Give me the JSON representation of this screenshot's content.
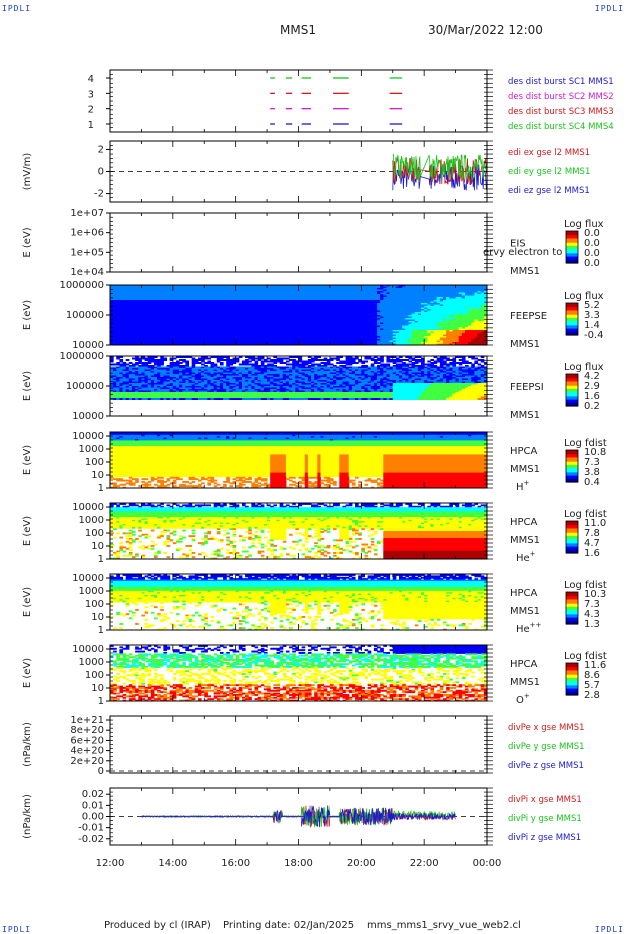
{
  "header": {
    "corner_tl": "IPDLI",
    "corner_tr": "IPDLI",
    "corner_bl": "IPDLI",
    "corner_br": "IPDLI",
    "mission": "MMS1",
    "date_time": "30/Mar/2022 12:00"
  },
  "footer": {
    "producer": "Produced by cl (IRAP)",
    "printing_date": "Printing date: 02/Jan/2025",
    "filename": "mms_mms1_srvy_vue_web2.cl"
  },
  "colors": {
    "red": "#d21a1a",
    "green": "#19c419",
    "blue": "#1a1ad2",
    "magenta": "#d21ad2",
    "cmap": [
      "#000088",
      "#0000ff",
      "#0080ff",
      "#00ffff",
      "#40ff40",
      "#ffff00",
      "#ff8000",
      "#ff0000",
      "#aa0000"
    ]
  },
  "chart_data": [
    {
      "type": "line",
      "panel": "burst",
      "yticks": [
        "4",
        "3",
        "2",
        "1"
      ],
      "legend": [
        {
          "text": "des dist burst SC1 MMS1",
          "color": "blue"
        },
        {
          "text": "des dist burst SC2 MMS2",
          "color": "magenta"
        },
        {
          "text": "des dist burst SC3 MMS3",
          "color": "red"
        },
        {
          "text": "des dist burst SC4 MMS4",
          "color": "green"
        }
      ],
      "segments": [
        [
          17.1,
          17.25
        ],
        [
          17.6,
          17.8
        ],
        [
          18.1,
          18.4
        ],
        [
          19.1,
          19.6
        ],
        [
          20.9,
          21.3
        ]
      ]
    },
    {
      "type": "line",
      "panel": "edi",
      "ylabel": "(mV/m)",
      "yticks": [
        "2",
        "0",
        "-2"
      ],
      "legend": [
        {
          "text": "edi ex gse l2 MMS1",
          "color": "red"
        },
        {
          "text": "edi ey gse l2 MMS1",
          "color": "green"
        },
        {
          "text": "edi ez gse l2 MMS1",
          "color": "blue"
        }
      ]
    },
    {
      "type": "heatmap",
      "panel": "eis",
      "ylabel": "E (eV)",
      "yticks": [
        "1e+07",
        "1e+06",
        "1e+05",
        "1e+04"
      ],
      "instrument": [
        "EIS",
        "MMS1"
      ],
      "overlay": "ervy electron to",
      "cbar_title": "Log flux",
      "cbar_ticks": [
        "0.0",
        "0.0",
        "0.0",
        "0.0"
      ]
    },
    {
      "type": "heatmap",
      "panel": "feepse",
      "ylabel": "E (eV)",
      "yticks": [
        "1000000",
        "100000",
        "10000"
      ],
      "instrument": [
        "FEEPSE",
        "MMS1"
      ],
      "cbar_title": "Log flux",
      "cbar_ticks": [
        "5.2",
        "3.3",
        "1.4",
        "-0.4"
      ]
    },
    {
      "type": "heatmap",
      "panel": "feepsi",
      "ylabel": "E (eV)",
      "yticks": [
        "1000000",
        "100000",
        "10000"
      ],
      "instrument": [
        "FEEPSI",
        "MMS1"
      ],
      "cbar_title": "Log flux",
      "cbar_ticks": [
        "4.2",
        "2.9",
        "1.6",
        "0.2"
      ]
    },
    {
      "type": "heatmap",
      "panel": "hpca_h",
      "ylabel": "E (eV)",
      "yticks": [
        "10000",
        "1000",
        "100",
        "10",
        "1"
      ],
      "instrument": [
        "HPCA",
        "MMS1"
      ],
      "species": "H",
      "species_sup": "+",
      "cbar_title": "Log fdist",
      "cbar_ticks": [
        "10.8",
        "7.3",
        "3.8",
        "0.4"
      ]
    },
    {
      "type": "heatmap",
      "panel": "hpca_he",
      "ylabel": "E (eV)",
      "yticks": [
        "10000",
        "1000",
        "100",
        "10",
        "1"
      ],
      "instrument": [
        "HPCA",
        "MMS1"
      ],
      "species": "He",
      "species_sup": "+",
      "cbar_title": "Log fdist",
      "cbar_ticks": [
        "11.0",
        "7.8",
        "4.7",
        "1.6"
      ]
    },
    {
      "type": "heatmap",
      "panel": "hpca_he2",
      "ylabel": "E (eV)",
      "yticks": [
        "10000",
        "1000",
        "100",
        "10",
        "1"
      ],
      "instrument": [
        "HPCA",
        "MMS1"
      ],
      "species": "He",
      "species_sup": "++",
      "cbar_title": "Log fdist",
      "cbar_ticks": [
        "10.3",
        "7.3",
        "4.3",
        "1.3"
      ]
    },
    {
      "type": "heatmap",
      "panel": "hpca_o",
      "ylabel": "E (eV)",
      "yticks": [
        "10000",
        "1000",
        "100",
        "10",
        "1"
      ],
      "instrument": [
        "HPCA",
        "MMS1"
      ],
      "species": "O",
      "species_sup": "+",
      "cbar_title": "Log fdist",
      "cbar_ticks": [
        "11.6",
        "8.6",
        "5.7",
        "2.8"
      ]
    },
    {
      "type": "line",
      "panel": "divpe",
      "ylabel": "(nPa/km)",
      "yticks": [
        "1e+21",
        "8e+20",
        "6e+20",
        "4e+20",
        "2e+20",
        "0"
      ],
      "legend": [
        {
          "text": "divPe x gse MMS1",
          "color": "red"
        },
        {
          "text": "divPe y gse MMS1",
          "color": "green"
        },
        {
          "text": "divPe z gse MMS1",
          "color": "blue"
        }
      ]
    },
    {
      "type": "line",
      "panel": "divpi",
      "ylabel": "(nPa/km)",
      "yticks": [
        "0.02",
        "0.01",
        "0.00",
        "-0.01",
        "-0.02"
      ],
      "legend": [
        {
          "text": "divPi x gse MMS1",
          "color": "red"
        },
        {
          "text": "divPi y gse MMS1",
          "color": "green"
        },
        {
          "text": "divPi z gse MMS1",
          "color": "blue"
        }
      ]
    }
  ],
  "time_axis": {
    "labels": [
      "12:00",
      "14:00",
      "16:00",
      "18:00",
      "20:00",
      "22:00",
      "00:00"
    ],
    "range": [
      12,
      24
    ]
  }
}
